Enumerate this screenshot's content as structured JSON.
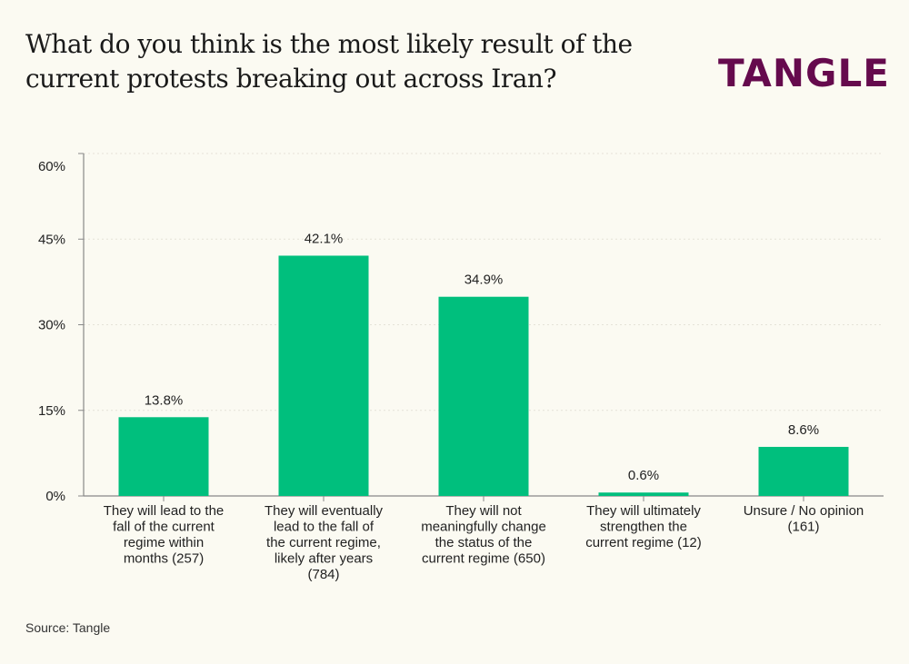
{
  "title": "What do you think is the most likely result of the current protests breaking out across Iran?",
  "logo": "TANGLE",
  "source": "Source: Tangle",
  "colors": {
    "bar": "#00bf7d",
    "logo": "#650a4d",
    "axis": "#888888"
  },
  "chart_data": {
    "type": "bar",
    "title": "What do you think is the most likely result of the current protests breaking out across Iran?",
    "xlabel": "",
    "ylabel": "",
    "ylim": [
      0,
      60
    ],
    "yticks": [
      0,
      15,
      30,
      45,
      60
    ],
    "ytick_labels": [
      "0%",
      "15%",
      "30%",
      "45%",
      "60%"
    ],
    "grid": true,
    "categories": [
      [
        "They will lead to the",
        "fall of the current",
        "regime within",
        "months (257)"
      ],
      [
        "They will eventually",
        "lead to the fall of",
        "the current regime,",
        "likely after years",
        "(784)"
      ],
      [
        "They will not",
        "meaningfully change",
        "the status of the",
        "current regime (650)"
      ],
      [
        "They will ultimately",
        "strengthen the",
        "current regime (12)"
      ],
      [
        "Unsure / No opinion",
        "(161)"
      ]
    ],
    "values": [
      13.8,
      42.1,
      34.9,
      0.6,
      8.6
    ],
    "data_labels": [
      "13.8%",
      "42.1%",
      "34.9%",
      "0.6%",
      "8.6%"
    ]
  }
}
